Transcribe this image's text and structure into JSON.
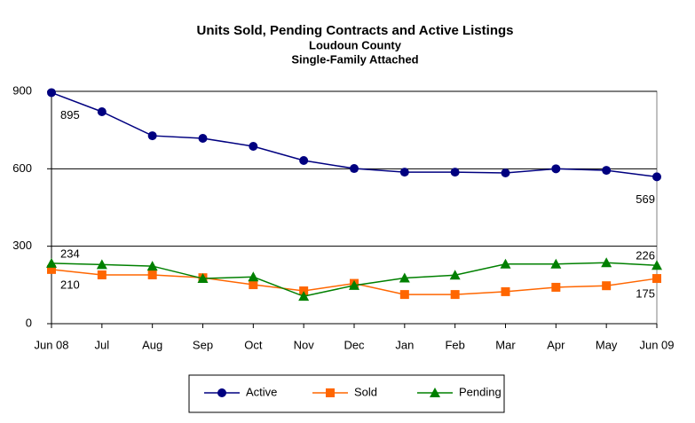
{
  "chart_data": {
    "type": "line",
    "title": "Units Sold, Pending Contracts and Active Listings",
    "subtitle": [
      "Loudoun County",
      "Single-Family Attached"
    ],
    "categories": [
      "Jun 08",
      "Jul",
      "Aug",
      "Sep",
      "Oct",
      "Nov",
      "Dec",
      "Jan",
      "Feb",
      "Mar",
      "Apr",
      "May",
      "Jun 09"
    ],
    "series": [
      {
        "name": "Active",
        "color": "#000080",
        "marker": "circle",
        "values": [
          895,
          821,
          728,
          718,
          687,
          632,
          601,
          587,
          587,
          584,
          600,
          594,
          569
        ],
        "value_labels": [
          "895",
          null,
          null,
          null,
          null,
          null,
          null,
          null,
          null,
          null,
          null,
          null,
          "569"
        ]
      },
      {
        "name": "Sold",
        "color": "#ff6600",
        "marker": "square",
        "values": [
          210,
          189,
          189,
          178,
          151,
          127,
          156,
          113,
          113,
          124,
          141,
          147,
          175
        ],
        "value_labels": [
          "210",
          null,
          null,
          null,
          null,
          null,
          null,
          null,
          null,
          null,
          null,
          null,
          "175"
        ]
      },
      {
        "name": "Pending",
        "color": "#008000",
        "marker": "triangle",
        "values": [
          234,
          229,
          223,
          175,
          181,
          106,
          148,
          177,
          188,
          231,
          231,
          236,
          226
        ],
        "value_labels": [
          "234",
          null,
          null,
          null,
          null,
          null,
          null,
          null,
          null,
          null,
          null,
          null,
          "226"
        ]
      }
    ],
    "ylim": [
      0,
      900
    ],
    "yticks": [
      0,
      300,
      600,
      900
    ],
    "grid": true,
    "legend": "bottom"
  }
}
